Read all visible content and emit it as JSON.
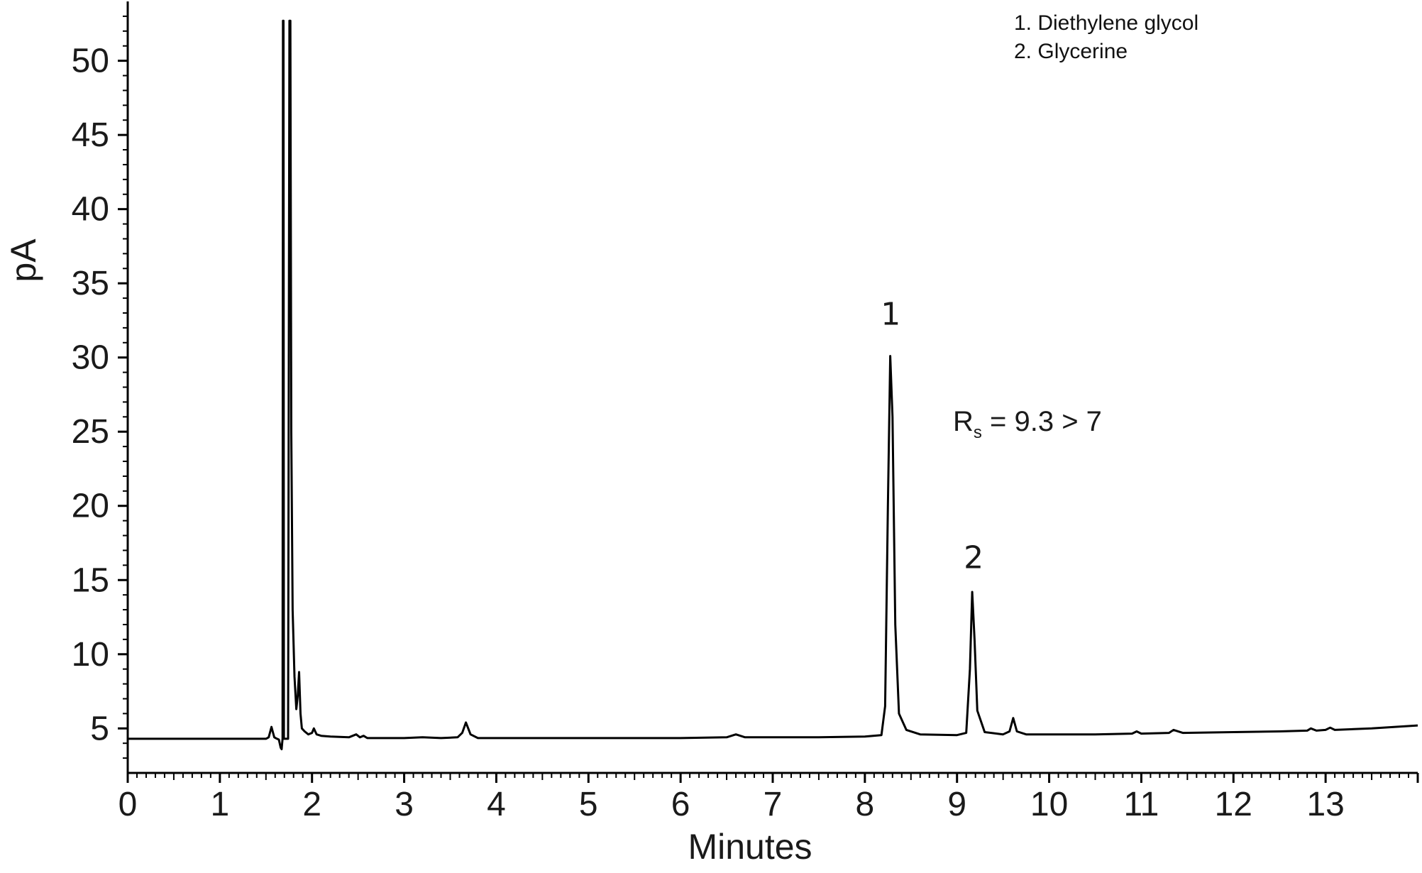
{
  "chart_data": {
    "type": "line",
    "xlabel": "Minutes",
    "ylabel": "pA",
    "xlim": [
      0,
      14
    ],
    "ylim": [
      2,
      54
    ],
    "xticks": [
      "0",
      "1",
      "2",
      "3",
      "4",
      "5",
      "6",
      "7",
      "8",
      "9",
      "10",
      "11",
      "12",
      "13"
    ],
    "yticks": [
      "5",
      "10",
      "15",
      "20",
      "25",
      "30",
      "35",
      "40",
      "45",
      "50"
    ],
    "legend": [
      "1. Diethylene glycol",
      "2. Glycerine"
    ],
    "legend_position": "top-right",
    "grid": false,
    "annotation": {
      "main": "R",
      "subscript": "s",
      "rest": " = 9.3 > 7"
    },
    "peak_labels": [
      {
        "label": "1",
        "x": 8.28,
        "y": 32.2
      },
      {
        "label": "2",
        "x": 9.18,
        "y": 15.8
      }
    ],
    "series": [
      {
        "color": "#000000",
        "points": [
          [
            0,
            4.3
          ],
          [
            1.5,
            4.3
          ],
          [
            1.53,
            4.4
          ],
          [
            1.56,
            5.1
          ],
          [
            1.59,
            4.4
          ],
          [
            1.62,
            4.3
          ],
          [
            1.64,
            4.25
          ],
          [
            1.66,
            3.7
          ],
          [
            1.67,
            3.6
          ],
          [
            1.68,
            4.3
          ],
          [
            1.685,
            52.7
          ],
          [
            1.69,
            52.7
          ],
          [
            1.695,
            4.3
          ],
          [
            1.72,
            4.3
          ],
          [
            1.74,
            4.3
          ],
          [
            1.755,
            52.7
          ],
          [
            1.765,
            52.7
          ],
          [
            1.775,
            25
          ],
          [
            1.79,
            13
          ],
          [
            1.81,
            8.5
          ],
          [
            1.83,
            6.3
          ],
          [
            1.845,
            7.2
          ],
          [
            1.86,
            8.8
          ],
          [
            1.875,
            6.0
          ],
          [
            1.89,
            5.0
          ],
          [
            1.92,
            4.8
          ],
          [
            1.96,
            4.6
          ],
          [
            2.0,
            4.7
          ],
          [
            2.02,
            5.0
          ],
          [
            2.05,
            4.6
          ],
          [
            2.1,
            4.5
          ],
          [
            2.2,
            4.45
          ],
          [
            2.4,
            4.4
          ],
          [
            2.48,
            4.6
          ],
          [
            2.52,
            4.4
          ],
          [
            2.56,
            4.5
          ],
          [
            2.6,
            4.35
          ],
          [
            3.0,
            4.35
          ],
          [
            3.2,
            4.4
          ],
          [
            3.4,
            4.35
          ],
          [
            3.58,
            4.4
          ],
          [
            3.63,
            4.7
          ],
          [
            3.67,
            5.4
          ],
          [
            3.72,
            4.6
          ],
          [
            3.8,
            4.35
          ],
          [
            4.5,
            4.35
          ],
          [
            5.0,
            4.35
          ],
          [
            6.0,
            4.35
          ],
          [
            6.5,
            4.4
          ],
          [
            6.6,
            4.6
          ],
          [
            6.7,
            4.4
          ],
          [
            7.0,
            4.4
          ],
          [
            7.5,
            4.4
          ],
          [
            8.0,
            4.45
          ],
          [
            8.18,
            4.55
          ],
          [
            8.22,
            6.5
          ],
          [
            8.25,
            20
          ],
          [
            8.275,
            30.1
          ],
          [
            8.3,
            26
          ],
          [
            8.33,
            12
          ],
          [
            8.37,
            6.0
          ],
          [
            8.45,
            4.9
          ],
          [
            8.6,
            4.6
          ],
          [
            9.0,
            4.55
          ],
          [
            9.1,
            4.7
          ],
          [
            9.14,
            9
          ],
          [
            9.165,
            14.2
          ],
          [
            9.19,
            11
          ],
          [
            9.22,
            6.2
          ],
          [
            9.3,
            4.75
          ],
          [
            9.5,
            4.6
          ],
          [
            9.57,
            4.8
          ],
          [
            9.61,
            5.7
          ],
          [
            9.65,
            4.8
          ],
          [
            9.75,
            4.6
          ],
          [
            10.0,
            4.6
          ],
          [
            10.5,
            4.6
          ],
          [
            10.9,
            4.65
          ],
          [
            10.95,
            4.8
          ],
          [
            11.0,
            4.65
          ],
          [
            11.3,
            4.7
          ],
          [
            11.35,
            4.9
          ],
          [
            11.45,
            4.7
          ],
          [
            12.0,
            4.75
          ],
          [
            12.5,
            4.8
          ],
          [
            12.8,
            4.85
          ],
          [
            12.84,
            5.0
          ],
          [
            12.9,
            4.85
          ],
          [
            13.0,
            4.9
          ],
          [
            13.05,
            5.05
          ],
          [
            13.1,
            4.9
          ],
          [
            13.5,
            5.0
          ],
          [
            14.0,
            5.2
          ]
        ]
      }
    ]
  }
}
